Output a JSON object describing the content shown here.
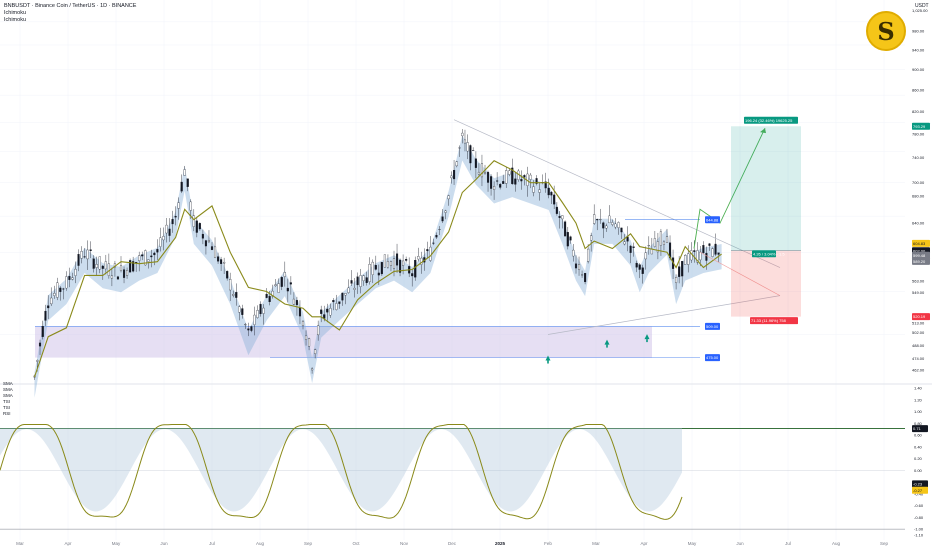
{
  "header": {
    "symbol": "BNBUSDT · Binance Coin / TetherUS · 1D · BINANCE",
    "line2": "Ichimoku",
    "line3": "Ichimoku"
  },
  "currency": "USDT",
  "logo_glyph": "S",
  "indicators": [
    "SMA",
    "SMA",
    "SMA",
    "TSI",
    "TSI",
    "RSI"
  ],
  "chart_data": [
    {
      "type": "candlestick",
      "title": "BNBUSDT · Binance Coin / TetherUS · 1D · BINANCE",
      "x_ticks": [
        "Mar",
        "Apr",
        "May",
        "Jun",
        "Jul",
        "Aug",
        "Sep",
        "Oct",
        "Nov",
        "Dec",
        "2025",
        "Feb",
        "Mar",
        "Apr",
        "May",
        "Jun",
        "Jul",
        "Aug",
        "Sep"
      ],
      "y_scale": "log",
      "y_range": [
        452,
        1045
      ],
      "y_ticks": [
        "1,025.00",
        "980.00",
        "940.00",
        "900.00",
        "860.00",
        "820.00",
        "780.00",
        "740.00",
        "700.00",
        "680.00",
        "640.00",
        "600.00",
        "563.00",
        "549.00",
        "513.00",
        "502.00",
        "488.00",
        "474.00",
        "462.00",
        "450.00"
      ],
      "price_series": [
        {
          "t": 1,
          "p": 455
        },
        {
          "t": 4,
          "p": 540
        },
        {
          "t": 8,
          "p": 560
        },
        {
          "t": 12,
          "p": 600
        },
        {
          "t": 16,
          "p": 580
        },
        {
          "t": 20,
          "p": 575
        },
        {
          "t": 24,
          "p": 590
        },
        {
          "t": 28,
          "p": 600
        },
        {
          "t": 32,
          "p": 650
        },
        {
          "t": 34,
          "p": 720
        },
        {
          "t": 36,
          "p": 640
        },
        {
          "t": 40,
          "p": 610
        },
        {
          "t": 44,
          "p": 560
        },
        {
          "t": 48,
          "p": 500
        },
        {
          "t": 52,
          "p": 540
        },
        {
          "t": 56,
          "p": 570
        },
        {
          "t": 60,
          "p": 520
        },
        {
          "t": 62,
          "p": 470
        },
        {
          "t": 64,
          "p": 520
        },
        {
          "t": 68,
          "p": 540
        },
        {
          "t": 72,
          "p": 560
        },
        {
          "t": 76,
          "p": 580
        },
        {
          "t": 80,
          "p": 590
        },
        {
          "t": 84,
          "p": 575
        },
        {
          "t": 88,
          "p": 600
        },
        {
          "t": 92,
          "p": 680
        },
        {
          "t": 95,
          "p": 770
        },
        {
          "t": 98,
          "p": 730
        },
        {
          "t": 102,
          "p": 700
        },
        {
          "t": 106,
          "p": 710
        },
        {
          "t": 110,
          "p": 700
        },
        {
          "t": 114,
          "p": 690
        },
        {
          "t": 117,
          "p": 640
        },
        {
          "t": 120,
          "p": 590
        },
        {
          "t": 122,
          "p": 570
        },
        {
          "t": 124,
          "p": 640
        },
        {
          "t": 128,
          "p": 640
        },
        {
          "t": 132,
          "p": 610
        },
        {
          "t": 134,
          "p": 575
        },
        {
          "t": 136,
          "p": 600
        },
        {
          "t": 140,
          "p": 625
        },
        {
          "t": 142,
          "p": 560
        },
        {
          "t": 144,
          "p": 590
        },
        {
          "t": 148,
          "p": 600
        },
        {
          "t": 152,
          "p": 605
        }
      ],
      "support_levels": [
        {
          "label": "644.88",
          "value": 644.88
        },
        {
          "label": "509.00",
          "value": 509
        },
        {
          "label": "475.00",
          "value": 475
        }
      ],
      "current_price_label": "602.00",
      "ichimoku_line_label": "604.83",
      "position": {
        "type": "long",
        "entry_label": "4.26 / 3.04% · 1.5",
        "target_label": "196.24 (32.46%) 19625.25",
        "stop_label": "71.33 (11.96%) 758",
        "target_price_label": "793.29",
        "stop_price_label": "520.19"
      },
      "axis_extra_labels": [
        "599.48",
        "589.20"
      ]
    },
    {
      "type": "line",
      "name": "TSI oscillator",
      "y_range": [
        -1.1,
        1.4
      ],
      "y_ticks": [
        "1.40",
        "1.20",
        "1.00",
        "0.80",
        "0.60",
        "0.40",
        "0.20",
        "0.00",
        "-0.20",
        "-0.40",
        "-0.60",
        "-0.80",
        "-1.00",
        "-1.10"
      ],
      "upper_line_label": "0.71",
      "current_labels": [
        "-0.23",
        "-0.27"
      ]
    }
  ]
}
